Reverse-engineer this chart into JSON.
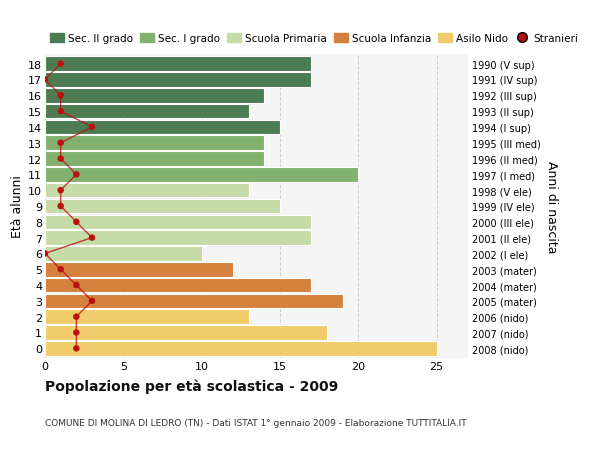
{
  "ages": [
    18,
    17,
    16,
    15,
    14,
    13,
    12,
    11,
    10,
    9,
    8,
    7,
    6,
    5,
    4,
    3,
    2,
    1,
    0
  ],
  "bar_values": [
    17,
    17,
    14,
    13,
    15,
    14,
    14,
    20,
    13,
    15,
    17,
    17,
    10,
    12,
    17,
    19,
    13,
    18,
    25
  ],
  "bar_colors": [
    "#4d7c52",
    "#4d7c52",
    "#4d7c52",
    "#4d7c52",
    "#4d7c52",
    "#82b06e",
    "#82b06e",
    "#82b06e",
    "#c5dba8",
    "#c5dba8",
    "#c5dba8",
    "#c5dba8",
    "#c5dba8",
    "#d4813e",
    "#d4813e",
    "#d4813e",
    "#f0cc6a",
    "#f0cc6a",
    "#f0cc6a"
  ],
  "stranieri_values": [
    1,
    0,
    1,
    1,
    3,
    1,
    1,
    2,
    1,
    1,
    2,
    3,
    0,
    1,
    2,
    3,
    2,
    2,
    2
  ],
  "right_labels": [
    "1990 (V sup)",
    "1991 (IV sup)",
    "1992 (III sup)",
    "1993 (II sup)",
    "1994 (I sup)",
    "1995 (III med)",
    "1996 (II med)",
    "1997 (I med)",
    "1998 (V ele)",
    "1999 (IV ele)",
    "2000 (III ele)",
    "2001 (II ele)",
    "2002 (I ele)",
    "2003 (mater)",
    "2004 (mater)",
    "2005 (mater)",
    "2006 (nido)",
    "2007 (nido)",
    "2008 (nido)"
  ],
  "legend_labels": [
    "Sec. II grado",
    "Sec. I grado",
    "Scuola Primaria",
    "Scuola Infanzia",
    "Asilo Nido",
    "Stranieri"
  ],
  "legend_colors": [
    "#4d7c52",
    "#82b06e",
    "#c5dba8",
    "#d4813e",
    "#f0cc6a",
    "#bb1111"
  ],
  "ylabel_left": "Età alunni",
  "ylabel_right": "Anni di nascita",
  "title": "Popolazione per età scolastica - 2009",
  "subtitle": "COMUNE DI MOLINA DI LEDRO (TN) - Dati ISTAT 1° gennaio 2009 - Elaborazione TUTTITALIA.IT",
  "xlim": [
    0,
    27
  ],
  "ylim": [
    -0.6,
    18.6
  ],
  "background_color": "#ffffff",
  "bar_background": "#f5f5f5",
  "grid_color": "#cccccc",
  "stranieri_color": "#bb1111",
  "xticks": [
    0,
    5,
    10,
    15,
    20,
    25
  ]
}
